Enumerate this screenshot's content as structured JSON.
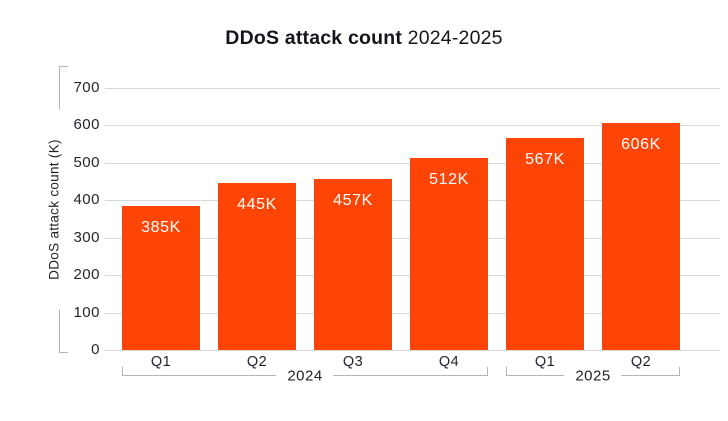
{
  "chart": {
    "title_bold": "DDoS attack count",
    "title_period": " 2024-2025",
    "y_axis_label": "DDoS attack count (K)"
  },
  "chart_data": {
    "type": "bar",
    "title": "DDoS attack count 2024-2025",
    "xlabel": "",
    "ylabel": "DDoS attack count (K)",
    "categories": [
      "Q1",
      "Q2",
      "Q3",
      "Q4",
      "Q1",
      "Q2"
    ],
    "values": [
      385,
      445,
      457,
      512,
      567,
      606
    ],
    "value_labels": [
      "385K",
      "445K",
      "457K",
      "512K",
      "567K",
      "606K"
    ],
    "groups": [
      {
        "label": "2024",
        "from": 0,
        "to": 3
      },
      {
        "label": "2025",
        "from": 4,
        "to": 5
      }
    ],
    "ylim": [
      0,
      700
    ],
    "yticks": [
      0,
      100,
      200,
      300,
      400,
      500,
      600,
      700
    ],
    "grid": true,
    "legend": false,
    "bar_color": "#ff4505",
    "bar_label_color": "#ffffff",
    "gridline_color": "#d9d9d9",
    "axis_bracket_color": "#b5b5b5",
    "text_color": "#1a1a23"
  }
}
